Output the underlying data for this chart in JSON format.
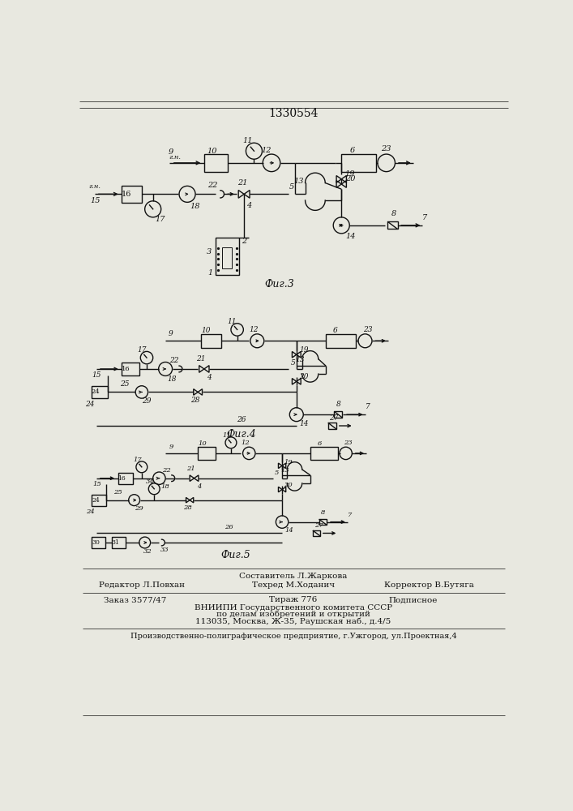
{
  "title": "1330554",
  "fig3_caption": "Фиг.3",
  "fig4_caption": "Фиг.4",
  "fig5_caption": "Фиг.5",
  "bg_color": "#e8e8e0",
  "line_color": "#111111"
}
